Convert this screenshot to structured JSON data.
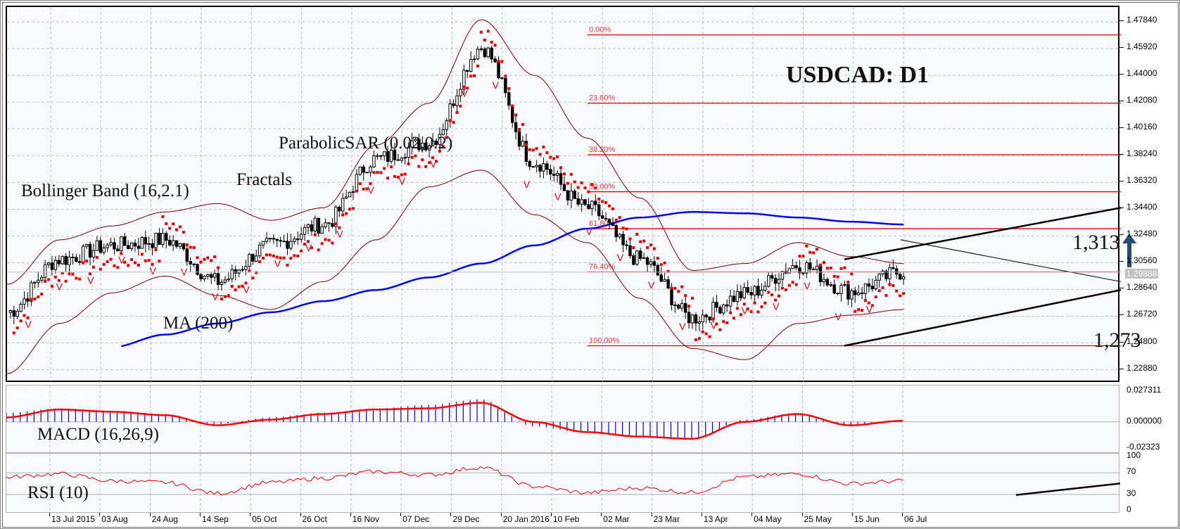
{
  "window": {
    "ghost_title": "USDCAD, D1",
    "chart_title": "USDCAD: D1"
  },
  "annotations": {
    "bollinger": "Bollinger Band (16,2.1)",
    "fractals": "Fractals",
    "parabolic": "ParabolicSAR (0.02,0.2)",
    "ma": "MA (200)",
    "macd": "MACD (16,26,9)",
    "rsi": "RSI (10)",
    "target_up": "1,313",
    "support": "1,273",
    "macd_ghost": "MACD (12, 26, 9)",
    "rsi_ghost": "RSI (10)"
  },
  "price_axis": {
    "ticks": [
      "1.47840",
      "1.45920",
      "1.44000",
      "1.42080",
      "1.40160",
      "1.38240",
      "1.36320",
      "1.34400",
      "1.32480",
      "1.30560",
      "1.28640",
      "1.26720",
      "1.24800",
      "1.22880"
    ],
    "current_price": "1.29888"
  },
  "macd_axis": {
    "ticks": [
      "0.027311",
      "0.000000",
      "-0.02323"
    ]
  },
  "rsi_axis": {
    "ticks": [
      "100",
      "70",
      "30",
      "0"
    ]
  },
  "date_axis": {
    "ticks": [
      "13 Jul 2015",
      "03 Aug",
      "24 Aug",
      "14 Sep",
      "05 Oct",
      "26 Oct",
      "16 Nov",
      "07 Dec",
      "29 Dec",
      "20 Jan 2016",
      "10 Feb",
      "02 Mar",
      "23 Mar",
      "13 Apr",
      "04 May",
      "25 May",
      "15 Jun",
      "06 Jul"
    ]
  },
  "fibonacci": {
    "levels": [
      {
        "label": "0.00%",
        "price": 1.469
      },
      {
        "label": "23.60%",
        "price": 1.42
      },
      {
        "label": "38.20%",
        "price": 1.383
      },
      {
        "label": "50.00%",
        "price": 1.3565
      },
      {
        "label": "61.80%",
        "price": 1.33
      },
      {
        "label": "76.40%",
        "price": 1.299
      },
      {
        "label": "100.00%",
        "price": 1.246
      }
    ]
  },
  "colors": {
    "background": "#f7f9ff",
    "grid": "#c0c0c0",
    "fib": "#e00000",
    "ma": "#0000ff",
    "bollinger": "#7a0000",
    "sar": "#ee0000",
    "fractal_up": "#00dd00",
    "fractal_down": "#ee0000",
    "macd_hist": "#0000ee",
    "macd_signal": "#ff0000",
    "rsi": "#ee0000",
    "arrow": "#1f4e79"
  },
  "chart_data": {
    "type": "line",
    "title": "USDCAD: D1",
    "xlabel": "",
    "ylabel": "Price",
    "ylim": [
      1.219,
      1.489
    ],
    "x": [
      "13 Jul 2015",
      "03 Aug",
      "24 Aug",
      "14 Sep",
      "05 Oct",
      "26 Oct",
      "16 Nov",
      "07 Dec",
      "29 Dec",
      "20 Jan 2016",
      "10 Feb",
      "02 Mar",
      "23 Mar",
      "13 Apr",
      "04 May",
      "25 May",
      "15 Jun",
      "06 Jul"
    ],
    "series": [
      {
        "name": "Close (approx)",
        "values": [
          1.27,
          1.308,
          1.318,
          1.322,
          1.292,
          1.318,
          1.333,
          1.38,
          1.392,
          1.46,
          1.378,
          1.345,
          1.308,
          1.266,
          1.283,
          1.304,
          1.285,
          1.299
        ]
      },
      {
        "name": "MA (200)",
        "values": [
          1.22,
          1.234,
          1.245,
          1.254,
          1.262,
          1.27,
          1.278,
          1.286,
          1.295,
          1.305,
          1.318,
          1.33,
          1.338,
          1.342,
          1.341,
          1.338,
          1.335,
          1.333
        ]
      },
      {
        "name": "Bollinger Upper",
        "values": [
          1.29,
          1.322,
          1.332,
          1.342,
          1.348,
          1.336,
          1.345,
          1.39,
          1.42,
          1.48,
          1.44,
          1.395,
          1.352,
          1.3,
          1.305,
          1.32,
          1.31,
          1.305
        ]
      },
      {
        "name": "Bollinger Lower",
        "values": [
          1.226,
          1.262,
          1.284,
          1.296,
          1.282,
          1.272,
          1.292,
          1.322,
          1.36,
          1.372,
          1.34,
          1.32,
          1.28,
          1.244,
          1.236,
          1.262,
          1.268,
          1.272
        ]
      }
    ],
    "macd": {
      "range": [
        -0.02323,
        0.027311
      ],
      "histogram_approx": [
        0.008,
        0.012,
        0.01,
        0.007,
        -0.002,
        0.004,
        0.008,
        0.012,
        0.015,
        0.02,
        -0.004,
        -0.01,
        -0.014,
        -0.016,
        0.002,
        0.008,
        -0.004,
        0.001
      ],
      "signal_approx": [
        0.004,
        0.011,
        0.009,
        0.006,
        -0.003,
        0.002,
        0.007,
        0.011,
        0.012,
        0.017,
        0.0,
        -0.009,
        -0.013,
        -0.015,
        0.0,
        0.007,
        -0.003,
        0.001
      ]
    },
    "rsi": {
      "range": [
        0,
        100
      ],
      "levels": [
        30,
        70
      ],
      "values_approx": [
        62,
        68,
        55,
        52,
        32,
        52,
        60,
        72,
        66,
        80,
        45,
        33,
        42,
        34,
        62,
        68,
        50,
        55
      ]
    },
    "fibonacci": [
      {
        "label": "0.00%",
        "price": 1.469
      },
      {
        "label": "23.60%",
        "price": 1.42
      },
      {
        "label": "38.20%",
        "price": 1.383
      },
      {
        "label": "50.00%",
        "price": 1.3565
      },
      {
        "label": "61.80%",
        "price": 1.33
      },
      {
        "label": "76.40%",
        "price": 1.299
      },
      {
        "label": "100.00%",
        "price": 1.246
      }
    ],
    "annotations": [
      "Bollinger Band (16,2.1)",
      "Fractals",
      "ParabolicSAR (0.02,0.2)",
      "MA (200)",
      "MACD (16,26,9)",
      "RSI (10)",
      "1,313",
      "1,273"
    ],
    "grid": true,
    "current_price": 1.29888
  }
}
